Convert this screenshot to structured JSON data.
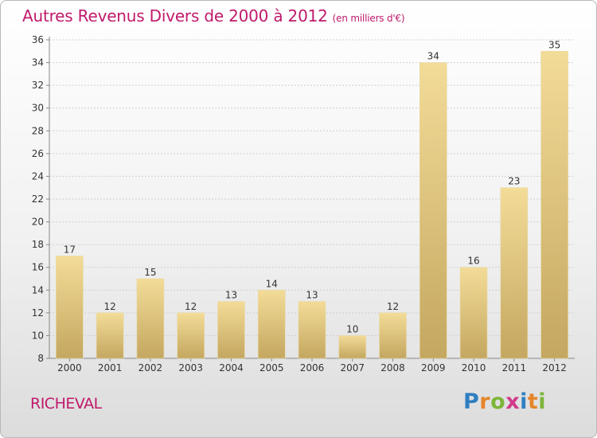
{
  "header": {
    "title": "Autres Revenus Divers de 2000 à 2012",
    "unit": "(en milliers d'€)"
  },
  "footer": {
    "commune": "RICHEVAL",
    "brand_letters": [
      "P",
      "r",
      "o",
      "x",
      "i",
      "t",
      "i"
    ]
  },
  "colors": {
    "title": "#c01a6b",
    "bar_top": "#f3dc98",
    "bar_bottom": "#c4a760",
    "grid": "#cfcfcf",
    "axis_text": "#333333"
  },
  "chart_data": {
    "type": "bar",
    "title": "Autres Revenus Divers de 2000 à 2012",
    "xlabel": "",
    "ylabel": "",
    "categories": [
      "2000",
      "2001",
      "2002",
      "2003",
      "2004",
      "2005",
      "2006",
      "2007",
      "2008",
      "2009",
      "2010",
      "2011",
      "2012"
    ],
    "values": [
      17,
      12,
      15,
      12,
      13,
      14,
      13,
      10,
      12,
      34,
      16,
      23,
      35
    ],
    "ylim": [
      8,
      36
    ],
    "yticks": [
      8,
      10,
      12,
      14,
      16,
      18,
      20,
      22,
      24,
      26,
      28,
      30,
      32,
      34,
      36
    ],
    "grid": true
  }
}
